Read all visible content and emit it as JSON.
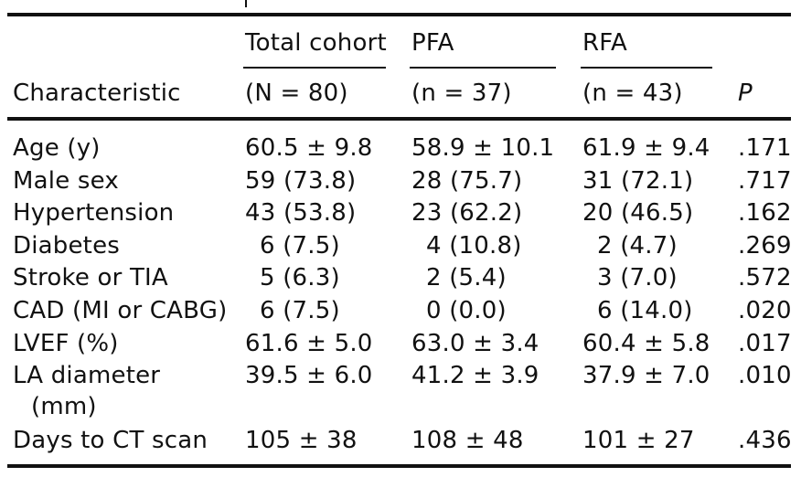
{
  "table": {
    "header": {
      "group_row": {
        "total": "Total cohort",
        "pfa": "PFA",
        "rfa": "RFA"
      },
      "sub_row": {
        "characteristic": "Characteristic",
        "total": "(N = 80)",
        "pfa": "(n = 37)",
        "rfa": "(n = 43)",
        "p": "P"
      }
    },
    "rows": [
      {
        "label": "Age (y)",
        "total": "60.5 ± 9.8",
        "pfa": "58.9 ± 10.1",
        "rfa": "61.9 ± 9.4",
        "p": ".171"
      },
      {
        "label": "Male sex",
        "total": "59 (73.8)",
        "pfa": "28 (75.7)",
        "rfa": "31 (72.1)",
        "p": ".717"
      },
      {
        "label": "Hypertension",
        "total": "43 (53.8)",
        "pfa": "23 (62.2)",
        "rfa": "20 (46.5)",
        "p": ".162"
      },
      {
        "label": "Diabetes",
        "total": "6 (7.5)",
        "pfa": "4 (10.8)",
        "rfa": "2 (4.7)",
        "p": ".269"
      },
      {
        "label": "Stroke or TIA",
        "total": "5 (6.3)",
        "pfa": "2 (5.4)",
        "rfa": "3 (7.0)",
        "p": ".572"
      },
      {
        "label": "CAD (MI or CABG)",
        "total": "6 (7.5)",
        "pfa": "0 (0.0)",
        "rfa": "6 (14.0)",
        "p": ".020"
      },
      {
        "label": "LVEF (%)",
        "total": "61.6 ± 5.0",
        "pfa": "63.0 ± 3.4",
        "rfa": "60.4 ± 5.8",
        "p": ".017"
      },
      {
        "label": "LA diameter",
        "label2": "(mm)",
        "total": "39.5 ± 6.0",
        "pfa": "41.2 ± 3.9",
        "rfa": "37.9 ± 7.0",
        "p": ".010"
      },
      {
        "label": "Days to CT scan",
        "total": "105 ± 38",
        "pfa": "108 ± 48",
        "rfa": "101 ± 27",
        "p": ".436"
      }
    ]
  }
}
